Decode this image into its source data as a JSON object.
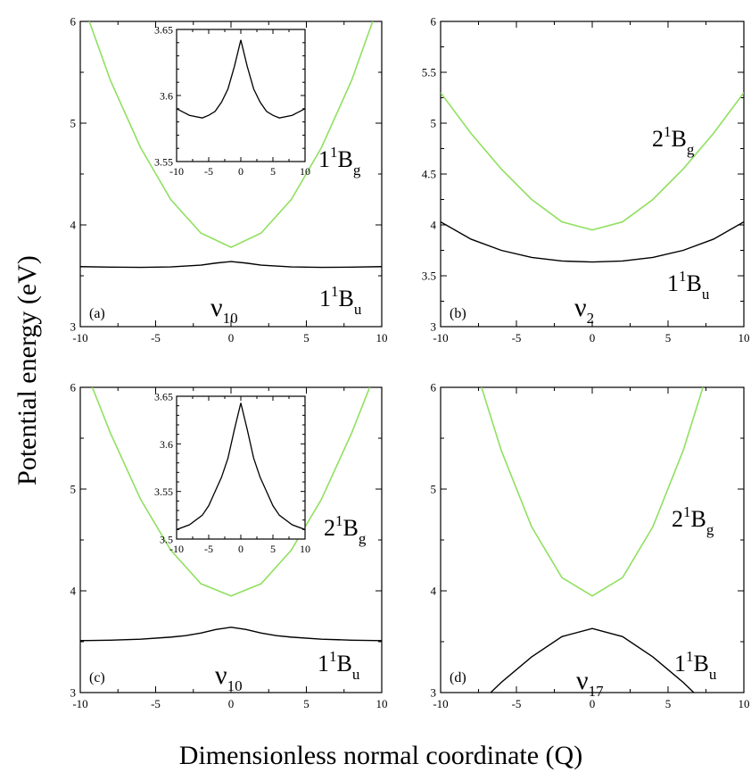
{
  "figure": {
    "ylabel": "Potential energy (eV)",
    "xlabel": "Dimensionless normal coordinate (Q)"
  },
  "colors": {
    "excited": "#90e060",
    "ground": "#000000"
  },
  "chart_data": [
    {
      "type": "line",
      "panel_label": "(a)",
      "mode_label": {
        "symbol": "ν",
        "sub": "10"
      },
      "xlim": [
        -10,
        10
      ],
      "ylim": [
        3,
        6
      ],
      "xticks": [
        -10,
        -5,
        0,
        5,
        10
      ],
      "yticks": [
        3,
        4,
        5,
        6
      ],
      "series": [
        {
          "state": {
            "pre": "1",
            "sup": "1",
            "main": "B",
            "sub": "g"
          },
          "color": "excited",
          "x": [
            -9.4,
            -8,
            -6,
            -4,
            -2,
            0,
            2,
            4,
            6,
            8,
            9.4
          ],
          "y": [
            6.0,
            5.42,
            4.76,
            4.25,
            3.92,
            3.78,
            3.92,
            4.25,
            4.76,
            5.42,
            6.0
          ]
        },
        {
          "state": {
            "pre": "1",
            "sup": "1",
            "main": "B",
            "sub": "u"
          },
          "color": "ground",
          "x": [
            -10,
            -8,
            -6,
            -4,
            -2,
            -1,
            0,
            1,
            2,
            4,
            6,
            8,
            10
          ],
          "y": [
            3.59,
            3.585,
            3.583,
            3.587,
            3.605,
            3.625,
            3.64,
            3.625,
            3.605,
            3.587,
            3.583,
            3.585,
            3.59
          ]
        }
      ],
      "inset": {
        "xlim": [
          -10,
          10
        ],
        "ylim": [
          3.55,
          3.65
        ],
        "xticks": [
          -10,
          -5,
          0,
          5,
          10
        ],
        "yticks": [
          3.55,
          3.6,
          3.65
        ],
        "series": [
          {
            "color": "ground",
            "x": [
              -10,
              -8,
              -6,
              -5,
              -4,
              -3,
              -2,
              -1,
              0,
              1,
              2,
              3,
              4,
              5,
              6,
              8,
              10
            ],
            "y": [
              3.59,
              3.585,
              3.583,
              3.585,
              3.588,
              3.595,
              3.605,
              3.622,
              3.642,
              3.622,
              3.605,
              3.595,
              3.588,
              3.585,
              3.583,
              3.585,
              3.59
            ]
          }
        ]
      }
    },
    {
      "type": "line",
      "panel_label": "(b)",
      "mode_label": {
        "symbol": "ν",
        "sub": "2"
      },
      "xlim": [
        -10,
        10
      ],
      "ylim": [
        3,
        6
      ],
      "xticks": [
        -10,
        -5,
        0,
        5,
        10
      ],
      "yticks": [
        3,
        3.5,
        4,
        4.5,
        5,
        5.5,
        6
      ],
      "series": [
        {
          "state": {
            "pre": "2",
            "sup": "1",
            "main": "B",
            "sub": "g"
          },
          "color": "excited",
          "x": [
            -10,
            -8,
            -6,
            -4,
            -2,
            0,
            2,
            4,
            6,
            8,
            10
          ],
          "y": [
            5.3,
            4.9,
            4.55,
            4.25,
            4.03,
            3.95,
            4.03,
            4.25,
            4.55,
            4.9,
            5.3
          ]
        },
        {
          "state": {
            "pre": "1",
            "sup": "1",
            "main": "B",
            "sub": "u"
          },
          "color": "ground",
          "x": [
            -10,
            -8,
            -6,
            -4,
            -2,
            0,
            2,
            4,
            6,
            8,
            10
          ],
          "y": [
            4.03,
            3.86,
            3.75,
            3.68,
            3.645,
            3.635,
            3.645,
            3.68,
            3.75,
            3.86,
            4.03
          ]
        }
      ]
    },
    {
      "type": "line",
      "panel_label": "(c)",
      "mode_label": {
        "symbol": "ν",
        "sub": "10"
      },
      "xlim": [
        -10,
        10
      ],
      "ylim": [
        3,
        6
      ],
      "xticks": [
        -10,
        -5,
        0,
        5,
        10
      ],
      "yticks": [
        3,
        4,
        5,
        6
      ],
      "series": [
        {
          "state": {
            "pre": "2",
            "sup": "1",
            "main": "B",
            "sub": "g"
          },
          "color": "excited",
          "x": [
            -9.2,
            -8,
            -6,
            -4,
            -2,
            0,
            2,
            4,
            6,
            8,
            9.2
          ],
          "y": [
            6.0,
            5.55,
            4.9,
            4.4,
            4.07,
            3.95,
            4.07,
            4.4,
            4.9,
            5.55,
            6.0
          ]
        },
        {
          "state": {
            "pre": "1",
            "sup": "1",
            "main": "B",
            "sub": "u"
          },
          "color": "ground",
          "x": [
            -10,
            -8,
            -6,
            -4,
            -3,
            -2,
            -1,
            0,
            1,
            2,
            3,
            4,
            6,
            8,
            10
          ],
          "y": [
            3.51,
            3.515,
            3.525,
            3.545,
            3.56,
            3.585,
            3.62,
            3.642,
            3.62,
            3.585,
            3.56,
            3.545,
            3.525,
            3.515,
            3.51
          ]
        }
      ],
      "inset": {
        "xlim": [
          -10,
          10
        ],
        "ylim": [
          3.5,
          3.65
        ],
        "xticks": [
          -10,
          -5,
          0,
          5,
          10
        ],
        "yticks": [
          3.5,
          3.55,
          3.6,
          3.65
        ],
        "series": [
          {
            "color": "ground",
            "x": [
              -10,
              -8,
              -6,
              -5,
              -4,
              -3,
              -2,
              -1,
              0,
              1,
              2,
              3,
              4,
              5,
              6,
              8,
              10
            ],
            "y": [
              3.51,
              3.515,
              3.525,
              3.535,
              3.55,
              3.565,
              3.585,
              3.615,
              3.643,
              3.615,
              3.585,
              3.565,
              3.55,
              3.535,
              3.525,
              3.515,
              3.51
            ]
          }
        ]
      }
    },
    {
      "type": "line",
      "panel_label": "(d)",
      "mode_label": {
        "symbol": "ν",
        "sub": "17"
      },
      "xlim": [
        -10,
        10
      ],
      "ylim": [
        3,
        6
      ],
      "xticks": [
        -10,
        -5,
        0,
        5,
        10
      ],
      "yticks": [
        3,
        4,
        5,
        6
      ],
      "series": [
        {
          "state": {
            "pre": "2",
            "sup": "1",
            "main": "B",
            "sub": "g"
          },
          "color": "excited",
          "x": [
            -7.3,
            -6,
            -4,
            -2,
            0,
            2,
            4,
            6,
            7.3
          ],
          "y": [
            6.0,
            5.38,
            4.63,
            4.13,
            3.95,
            4.13,
            4.63,
            5.38,
            6.0
          ]
        },
        {
          "state": {
            "pre": "1",
            "sup": "1",
            "main": "B",
            "sub": "u"
          },
          "color": "ground",
          "x": [
            -6.7,
            -6,
            -4,
            -2,
            0,
            2,
            4,
            6,
            6.7
          ],
          "y": [
            3.0,
            3.1,
            3.35,
            3.55,
            3.63,
            3.55,
            3.35,
            3.1,
            3.0
          ]
        }
      ]
    }
  ]
}
